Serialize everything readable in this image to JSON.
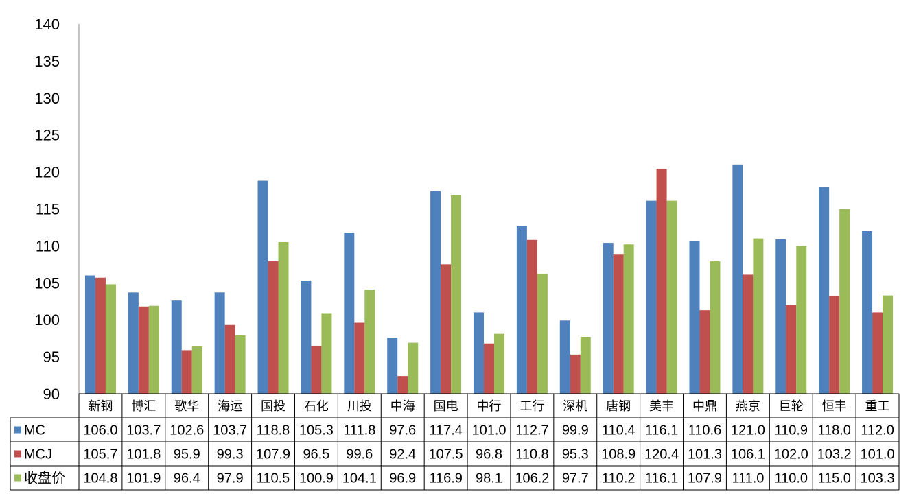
{
  "chart_data": {
    "type": "bar",
    "title": "",
    "xlabel": "",
    "ylabel": "",
    "ylim": [
      90,
      140
    ],
    "yticks": [
      90,
      95,
      100,
      105,
      110,
      115,
      120,
      125,
      130,
      135,
      140
    ],
    "grid": false,
    "legend": "table-left",
    "categories": [
      "新钢",
      "博汇",
      "歌华",
      "海运",
      "国投",
      "石化",
      "川投",
      "中海",
      "国电",
      "中行",
      "工行",
      "深机",
      "唐钢",
      "美丰",
      "中鼎",
      "燕京",
      "巨轮",
      "恒丰",
      "重工"
    ],
    "series": [
      {
        "name": "MC",
        "color": "#4f81bd",
        "values": [
          106.0,
          103.7,
          102.6,
          103.7,
          118.8,
          105.3,
          111.8,
          97.6,
          117.4,
          101.0,
          112.7,
          99.9,
          110.4,
          116.1,
          110.6,
          121.0,
          110.9,
          118.0,
          112.0
        ]
      },
      {
        "name": "MCJ",
        "color": "#c0504d",
        "values": [
          105.7,
          101.8,
          95.9,
          99.3,
          107.9,
          96.5,
          99.6,
          92.4,
          107.5,
          96.8,
          110.8,
          95.3,
          108.9,
          120.4,
          101.3,
          106.1,
          102.0,
          103.2,
          101.0
        ]
      },
      {
        "name": "收盘价",
        "color": "#9bbb59",
        "values": [
          104.8,
          101.9,
          96.4,
          97.9,
          110.5,
          100.9,
          104.1,
          96.9,
          116.9,
          98.1,
          106.2,
          97.7,
          110.2,
          116.1,
          107.9,
          111.0,
          110.0,
          115.0,
          103.3
        ]
      }
    ]
  }
}
